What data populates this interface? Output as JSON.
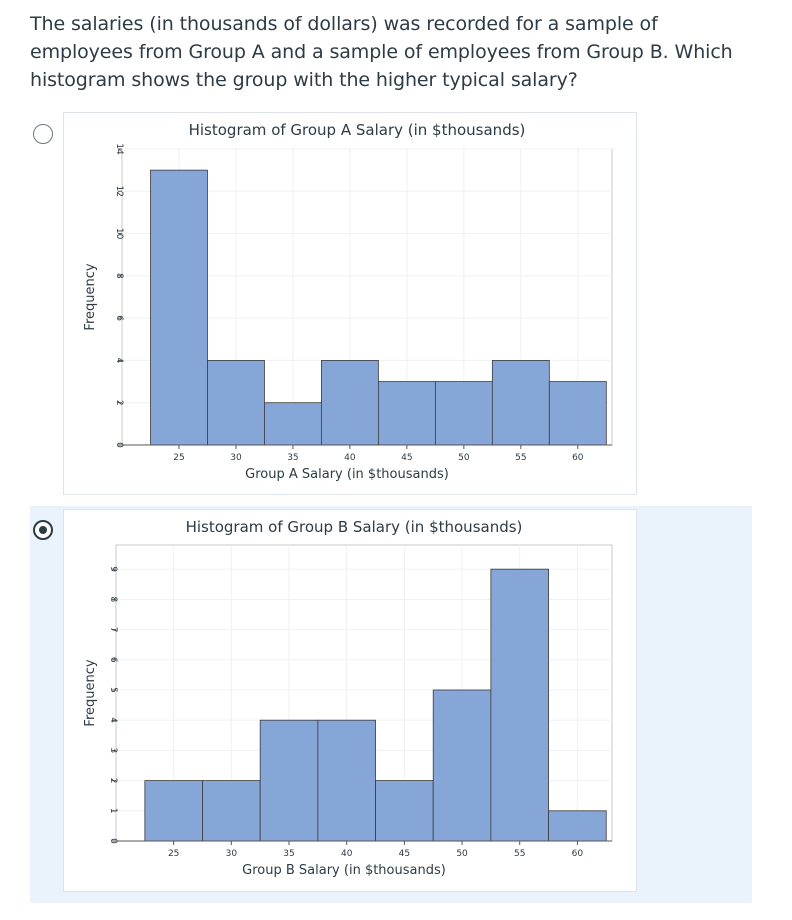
{
  "question": "The salaries (in thousands of dollars) was recorded for a sample of employees from Group A and a sample of employees from Group B. Which histogram shows the group with the higher typical salary?",
  "options": [
    {
      "id": "a",
      "selected": false
    },
    {
      "id": "b",
      "selected": true
    }
  ],
  "colors": {
    "bar_fill": "#86a6d7",
    "bar_stroke": "#3a3a3a",
    "selected_row": "#eaf2fb"
  },
  "chart_data": [
    {
      "type": "bar",
      "title": "Histogram of Group A Salary (in $thousands)",
      "xlabel": "Group A Salary (in $thousands)",
      "ylabel": "Frequency",
      "bin_width": 5,
      "bin_starts": [
        22.5,
        27.5,
        32.5,
        37.5,
        42.5,
        47.5,
        52.5,
        57.5
      ],
      "values": [
        13,
        4,
        2,
        4,
        3,
        3,
        4,
        3
      ],
      "xlim": [
        20,
        63
      ],
      "ylim": [
        0,
        14
      ],
      "xticks": [
        25,
        30,
        35,
        40,
        45,
        50,
        55,
        60
      ],
      "yticks": [
        0,
        2,
        4,
        6,
        8,
        10,
        12,
        14
      ],
      "grid": true
    },
    {
      "type": "bar",
      "title": "Histogram of Group B Salary (in $thousands)",
      "xlabel": "Group B Salary (in $thousands)",
      "ylabel": "Frequency",
      "bin_width": 5,
      "bin_starts": [
        22.5,
        27.5,
        32.5,
        37.5,
        42.5,
        47.5,
        52.5,
        57.5
      ],
      "values": [
        2,
        2,
        4,
        4,
        2,
        5,
        9,
        1
      ],
      "xlim": [
        20,
        63
      ],
      "ylim": [
        0,
        9.8
      ],
      "xticks": [
        25,
        30,
        35,
        40,
        45,
        50,
        55,
        60
      ],
      "yticks": [
        0,
        1,
        2,
        3,
        4,
        5,
        6,
        7,
        8,
        9
      ],
      "grid": true
    }
  ]
}
